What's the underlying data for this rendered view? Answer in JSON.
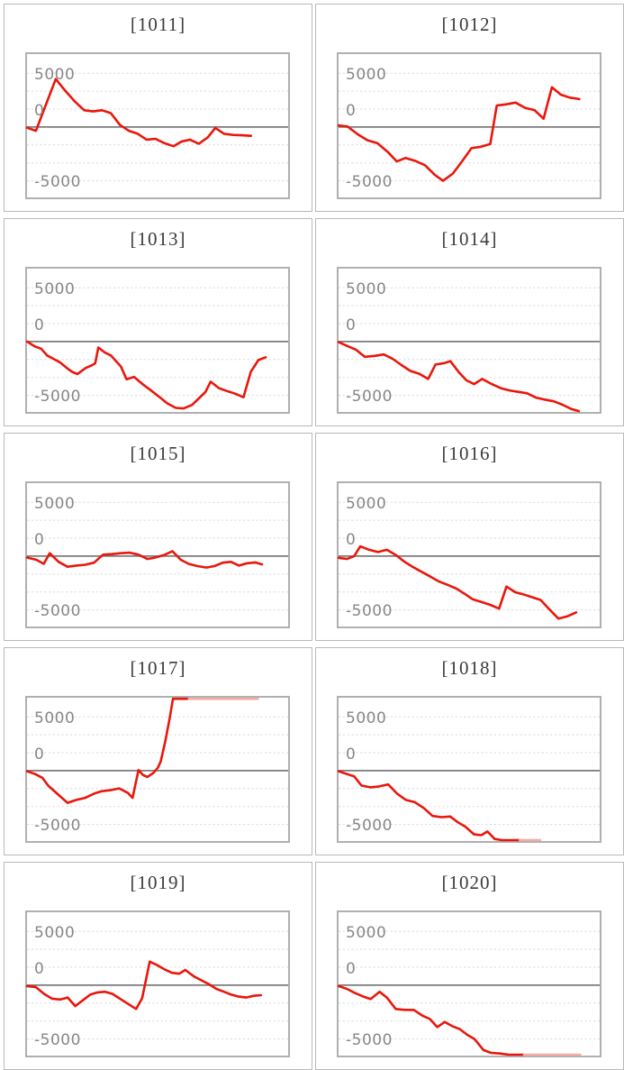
{
  "page": {
    "background": "#ffffff"
  },
  "style": {
    "card_border": "#b9b9b9",
    "plot_border": "#b0b0b0",
    "gridline_color": "#dadada",
    "zero_line_color": "#7c7c7c",
    "series_color": "#e8170c",
    "series_faded_color": "#f2aba5",
    "axis_label_color": "#878787",
    "title_color": "#3b3b3b"
  },
  "chart_data": {
    "type": "line",
    "y_axis_labels": [
      "5000",
      "0",
      "-5000"
    ],
    "y_gridline_step": 2500,
    "y_gridline_values": [
      7500,
      5000,
      2500,
      0,
      -2500,
      -5000,
      -7500
    ],
    "ylim": [
      -9870,
      10190
    ],
    "zero_line_value": 0,
    "grid": "horizontal-dashed",
    "legend": "none",
    "charts": [
      {
        "title": "[1011]",
        "points": [
          [
            0,
            -100
          ],
          [
            0.034,
            -530
          ],
          [
            0.072,
            3080
          ],
          [
            0.11,
            6680
          ],
          [
            0.145,
            5130
          ],
          [
            0.185,
            3490
          ],
          [
            0.219,
            2340
          ],
          [
            0.253,
            2170
          ],
          [
            0.287,
            2340
          ],
          [
            0.321,
            1930
          ],
          [
            0.356,
            290
          ],
          [
            0.39,
            -530
          ],
          [
            0.424,
            -940
          ],
          [
            0.458,
            -1760
          ],
          [
            0.492,
            -1640
          ],
          [
            0.527,
            -2260
          ],
          [
            0.561,
            -2670
          ],
          [
            0.59,
            -2050
          ],
          [
            0.624,
            -1760
          ],
          [
            0.658,
            -2340
          ],
          [
            0.692,
            -1440
          ],
          [
            0.721,
            -120
          ],
          [
            0.755,
            -940
          ],
          [
            0.79,
            -1110
          ],
          [
            0.824,
            -1150
          ],
          [
            0.858,
            -1230
          ]
        ],
        "fade_tail": null
      },
      {
        "title": "[1012]",
        "points": [
          [
            0,
            210
          ],
          [
            0.034,
            80
          ],
          [
            0.074,
            -1030
          ],
          [
            0.111,
            -1850
          ],
          [
            0.149,
            -2260
          ],
          [
            0.189,
            -3490
          ],
          [
            0.223,
            -4800
          ],
          [
            0.257,
            -4310
          ],
          [
            0.294,
            -4720
          ],
          [
            0.331,
            -5330
          ],
          [
            0.369,
            -6680
          ],
          [
            0.4,
            -7500
          ],
          [
            0.438,
            -6480
          ],
          [
            0.474,
            -4720
          ],
          [
            0.509,
            -2950
          ],
          [
            0.545,
            -2750
          ],
          [
            0.581,
            -2380
          ],
          [
            0.606,
            2990
          ],
          [
            0.643,
            3160
          ],
          [
            0.678,
            3400
          ],
          [
            0.714,
            2670
          ],
          [
            0.751,
            2340
          ],
          [
            0.785,
            1150
          ],
          [
            0.817,
            5540
          ],
          [
            0.851,
            4510
          ],
          [
            0.886,
            4100
          ],
          [
            0.922,
            3900
          ]
        ],
        "fade_tail": null
      },
      {
        "title": "[1013]",
        "points": [
          [
            0,
            0
          ],
          [
            0.031,
            -700
          ],
          [
            0.054,
            -990
          ],
          [
            0.077,
            -1940
          ],
          [
            0.105,
            -2470
          ],
          [
            0.125,
            -2880
          ],
          [
            0.156,
            -3780
          ],
          [
            0.175,
            -4270
          ],
          [
            0.193,
            -4520
          ],
          [
            0.224,
            -3690
          ],
          [
            0.246,
            -3360
          ],
          [
            0.261,
            -3040
          ],
          [
            0.273,
            -830
          ],
          [
            0.298,
            -1520
          ],
          [
            0.321,
            -1940
          ],
          [
            0.36,
            -3500
          ],
          [
            0.381,
            -5250
          ],
          [
            0.41,
            -4930
          ],
          [
            0.443,
            -5960
          ],
          [
            0.475,
            -6820
          ],
          [
            0.507,
            -7720
          ],
          [
            0.538,
            -8630
          ],
          [
            0.57,
            -9250
          ],
          [
            0.6,
            -9320
          ],
          [
            0.632,
            -8830
          ],
          [
            0.658,
            -7930
          ],
          [
            0.683,
            -7030
          ],
          [
            0.703,
            -5590
          ],
          [
            0.735,
            -6490
          ],
          [
            0.766,
            -6900
          ],
          [
            0.798,
            -7270
          ],
          [
            0.829,
            -7760
          ],
          [
            0.857,
            -4230
          ],
          [
            0.886,
            -2590
          ],
          [
            0.914,
            -2180
          ]
        ],
        "fade_tail": null
      },
      {
        "title": "[1014]",
        "points": [
          [
            0,
            -80
          ],
          [
            0.032,
            -600
          ],
          [
            0.066,
            -1120
          ],
          [
            0.1,
            -2120
          ],
          [
            0.139,
            -2000
          ],
          [
            0.173,
            -1800
          ],
          [
            0.207,
            -2400
          ],
          [
            0.241,
            -3280
          ],
          [
            0.275,
            -4090
          ],
          [
            0.309,
            -4490
          ],
          [
            0.343,
            -5210
          ],
          [
            0.371,
            -3200
          ],
          [
            0.405,
            -3000
          ],
          [
            0.428,
            -2720
          ],
          [
            0.462,
            -4330
          ],
          [
            0.49,
            -5410
          ],
          [
            0.519,
            -5930
          ],
          [
            0.55,
            -5210
          ],
          [
            0.587,
            -5930
          ],
          [
            0.621,
            -6490
          ],
          [
            0.654,
            -6810
          ],
          [
            0.688,
            -7010
          ],
          [
            0.722,
            -7210
          ],
          [
            0.756,
            -7810
          ],
          [
            0.79,
            -8090
          ],
          [
            0.824,
            -8330
          ],
          [
            0.858,
            -8810
          ],
          [
            0.892,
            -9410
          ],
          [
            0.92,
            -9810
          ]
        ],
        "fade_tail": null
      },
      {
        "title": "[1015]",
        "points": [
          [
            0,
            -200
          ],
          [
            0.036,
            -520
          ],
          [
            0.064,
            -1080
          ],
          [
            0.087,
            400
          ],
          [
            0.121,
            -800
          ],
          [
            0.155,
            -1480
          ],
          [
            0.189,
            -1320
          ],
          [
            0.223,
            -1200
          ],
          [
            0.257,
            -920
          ],
          [
            0.291,
            200
          ],
          [
            0.325,
            280
          ],
          [
            0.359,
            400
          ],
          [
            0.393,
            480
          ],
          [
            0.427,
            200
          ],
          [
            0.461,
            -400
          ],
          [
            0.491,
            -200
          ],
          [
            0.523,
            120
          ],
          [
            0.557,
            680
          ],
          [
            0.589,
            -520
          ],
          [
            0.619,
            -1080
          ],
          [
            0.653,
            -1400
          ],
          [
            0.687,
            -1600
          ],
          [
            0.718,
            -1400
          ],
          [
            0.75,
            -920
          ],
          [
            0.781,
            -800
          ],
          [
            0.812,
            -1320
          ],
          [
            0.842,
            -1000
          ],
          [
            0.874,
            -880
          ],
          [
            0.9,
            -1150
          ]
        ],
        "fade_tail": null
      },
      {
        "title": "[1016]",
        "points": [
          [
            0,
            -240
          ],
          [
            0.032,
            -400
          ],
          [
            0.06,
            0
          ],
          [
            0.083,
            1360
          ],
          [
            0.117,
            880
          ],
          [
            0.151,
            560
          ],
          [
            0.185,
            880
          ],
          [
            0.219,
            160
          ],
          [
            0.253,
            -800
          ],
          [
            0.281,
            -1440
          ],
          [
            0.315,
            -2120
          ],
          [
            0.349,
            -2800
          ],
          [
            0.383,
            -3520
          ],
          [
            0.417,
            -4000
          ],
          [
            0.451,
            -4520
          ],
          [
            0.485,
            -5320
          ],
          [
            0.513,
            -6000
          ],
          [
            0.547,
            -6400
          ],
          [
            0.581,
            -6800
          ],
          [
            0.615,
            -7320
          ],
          [
            0.643,
            -4240
          ],
          [
            0.677,
            -5040
          ],
          [
            0.706,
            -5320
          ],
          [
            0.74,
            -5720
          ],
          [
            0.774,
            -6120
          ],
          [
            0.808,
            -7440
          ],
          [
            0.842,
            -8720
          ],
          [
            0.876,
            -8400
          ],
          [
            0.91,
            -7840
          ]
        ],
        "fade_tail": null
      },
      {
        "title": "[1017]",
        "points": [
          [
            0,
            -80
          ],
          [
            0.031,
            -480
          ],
          [
            0.059,
            -1000
          ],
          [
            0.081,
            -2080
          ],
          [
            0.115,
            -3200
          ],
          [
            0.155,
            -4480
          ],
          [
            0.189,
            -4080
          ],
          [
            0.223,
            -3800
          ],
          [
            0.257,
            -3200
          ],
          [
            0.285,
            -2880
          ],
          [
            0.319,
            -2720
          ],
          [
            0.353,
            -2480
          ],
          [
            0.387,
            -3120
          ],
          [
            0.404,
            -3800
          ],
          [
            0.427,
            80
          ],
          [
            0.444,
            -600
          ],
          [
            0.461,
            -880
          ],
          [
            0.484,
            -320
          ],
          [
            0.501,
            400
          ],
          [
            0.512,
            1280
          ],
          [
            0.529,
            4000
          ],
          [
            0.546,
            7200
          ],
          [
            0.559,
            10050
          ],
          [
            0.62,
            10050
          ]
        ],
        "fade_tail": {
          "from": 0.62,
          "to": 0.884,
          "value": 10050
        }
      },
      {
        "title": "[1018]",
        "points": [
          [
            0,
            -80
          ],
          [
            0.032,
            -480
          ],
          [
            0.06,
            -800
          ],
          [
            0.088,
            -2080
          ],
          [
            0.122,
            -2320
          ],
          [
            0.156,
            -2200
          ],
          [
            0.19,
            -1920
          ],
          [
            0.224,
            -3200
          ],
          [
            0.258,
            -4080
          ],
          [
            0.292,
            -4400
          ],
          [
            0.326,
            -5200
          ],
          [
            0.36,
            -6320
          ],
          [
            0.394,
            -6480
          ],
          [
            0.428,
            -6400
          ],
          [
            0.457,
            -7200
          ],
          [
            0.485,
            -7800
          ],
          [
            0.519,
            -8880
          ],
          [
            0.547,
            -9000
          ],
          [
            0.57,
            -8480
          ],
          [
            0.598,
            -9520
          ],
          [
            0.626,
            -9700
          ],
          [
            0.694,
            -9700
          ]
        ],
        "fade_tail": {
          "from": 0.694,
          "to": 0.772,
          "value": -9700
        }
      },
      {
        "title": "[1019]",
        "points": [
          [
            0,
            -120
          ],
          [
            0.034,
            -280
          ],
          [
            0.065,
            -1200
          ],
          [
            0.096,
            -1880
          ],
          [
            0.128,
            -2000
          ],
          [
            0.156,
            -1720
          ],
          [
            0.185,
            -2920
          ],
          [
            0.213,
            -2120
          ],
          [
            0.242,
            -1320
          ],
          [
            0.27,
            -1000
          ],
          [
            0.299,
            -920
          ],
          [
            0.327,
            -1200
          ],
          [
            0.361,
            -2000
          ],
          [
            0.39,
            -2680
          ],
          [
            0.418,
            -3320
          ],
          [
            0.441,
            -1800
          ],
          [
            0.47,
            3280
          ],
          [
            0.498,
            2800
          ],
          [
            0.527,
            2200
          ],
          [
            0.555,
            1720
          ],
          [
            0.583,
            1600
          ],
          [
            0.606,
            2120
          ],
          [
            0.64,
            1200
          ],
          [
            0.668,
            680
          ],
          [
            0.697,
            120
          ],
          [
            0.725,
            -520
          ],
          [
            0.754,
            -920
          ],
          [
            0.782,
            -1320
          ],
          [
            0.811,
            -1600
          ],
          [
            0.839,
            -1720
          ],
          [
            0.868,
            -1480
          ],
          [
            0.896,
            -1400
          ]
        ],
        "fade_tail": null
      },
      {
        "title": "[1020]",
        "points": [
          [
            0,
            -120
          ],
          [
            0.032,
            -520
          ],
          [
            0.06,
            -1040
          ],
          [
            0.095,
            -1600
          ],
          [
            0.123,
            -1920
          ],
          [
            0.157,
            -920
          ],
          [
            0.185,
            -1720
          ],
          [
            0.219,
            -3320
          ],
          [
            0.253,
            -3440
          ],
          [
            0.288,
            -3440
          ],
          [
            0.321,
            -4240
          ],
          [
            0.35,
            -4720
          ],
          [
            0.378,
            -5840
          ],
          [
            0.407,
            -5120
          ],
          [
            0.436,
            -5720
          ],
          [
            0.464,
            -6120
          ],
          [
            0.493,
            -6920
          ],
          [
            0.521,
            -7520
          ],
          [
            0.555,
            -9040
          ],
          [
            0.584,
            -9440
          ],
          [
            0.618,
            -9520
          ],
          [
            0.652,
            -9720
          ],
          [
            0.686,
            -9700
          ],
          [
            0.71,
            -9700
          ]
        ],
        "fade_tail": {
          "from": 0.71,
          "to": 0.925,
          "value": -9700
        }
      }
    ]
  }
}
